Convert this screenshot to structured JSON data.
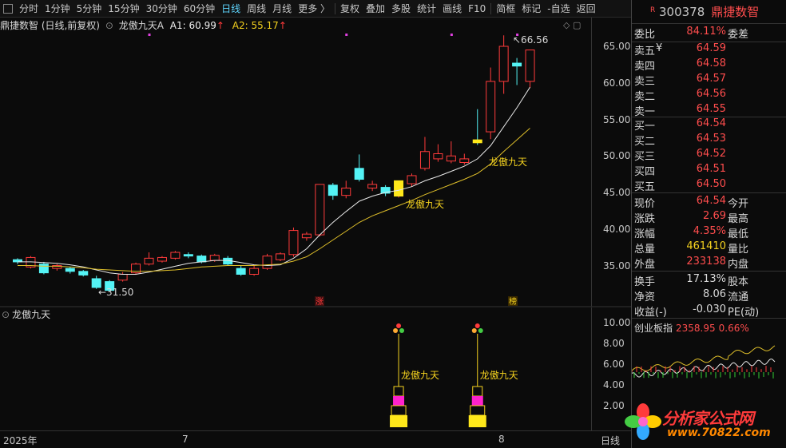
{
  "toolbar": {
    "items": [
      "分时",
      "1分钟",
      "5分钟",
      "15分钟",
      "30分钟",
      "60分钟",
      "日线",
      "周线",
      "月线",
      "更多 〉",
      "复权",
      "叠加",
      "多股",
      "统计",
      "画线",
      "F10",
      "简框",
      "标记",
      "-自选",
      "返回"
    ],
    "active": "日线"
  },
  "chart_header": {
    "stock_label": "鼎捷数智 (日线,前复权)",
    "indicator": "龙傲九天A",
    "a1_label": "A1:",
    "a1_value": "60.99",
    "a2_label": "A2:",
    "a2_value": "55.17",
    "up_arrow": "↑",
    "window_icons": "◇ ▢"
  },
  "price_axis": [
    "65.00",
    "60.00",
    "55.00",
    "50.00",
    "45.00",
    "40.00",
    "35.00"
  ],
  "indicator_panel": {
    "title": "龙傲九天",
    "axis": [
      "10.00",
      "8.00",
      "6.00",
      "4.00",
      "2.00"
    ]
  },
  "dates": {
    "start": "2025年",
    "m7": "7",
    "m8": "8",
    "period": "日线"
  },
  "chart_data": {
    "type": "candlestick",
    "price_range": [
      31.0,
      68.0
    ],
    "candles": [
      {
        "o": 35.8,
        "c": 35.5,
        "h": 36.0,
        "l": 35.2
      },
      {
        "o": 34.8,
        "c": 36.1,
        "h": 36.3,
        "l": 34.6
      },
      {
        "o": 35.2,
        "c": 34.0,
        "h": 35.5,
        "l": 33.8
      },
      {
        "o": 34.6,
        "c": 35.0,
        "h": 35.2,
        "l": 34.3
      },
      {
        "o": 34.6,
        "c": 34.2,
        "h": 34.8,
        "l": 33.9
      },
      {
        "o": 34.2,
        "c": 33.7,
        "h": 34.4,
        "l": 33.5
      },
      {
        "o": 33.2,
        "c": 32.0,
        "h": 33.6,
        "l": 31.8
      },
      {
        "o": 32.8,
        "c": 31.6,
        "h": 33.0,
        "l": 31.5
      },
      {
        "o": 33.0,
        "c": 33.8,
        "h": 34.1,
        "l": 32.8
      },
      {
        "o": 34.0,
        "c": 35.2,
        "h": 35.4,
        "l": 33.8
      },
      {
        "o": 35.2,
        "c": 36.0,
        "h": 36.8,
        "l": 35.0
      },
      {
        "o": 35.6,
        "c": 36.1,
        "h": 36.3,
        "l": 35.4
      },
      {
        "o": 36.0,
        "c": 36.8,
        "h": 37.0,
        "l": 35.8
      },
      {
        "o": 36.5,
        "c": 36.3,
        "h": 36.8,
        "l": 36.0
      },
      {
        "o": 36.3,
        "c": 35.5,
        "h": 36.5,
        "l": 35.3
      },
      {
        "o": 35.7,
        "c": 36.4,
        "h": 36.6,
        "l": 35.5
      },
      {
        "o": 36.0,
        "c": 35.2,
        "h": 36.3,
        "l": 35.0
      },
      {
        "o": 34.6,
        "c": 33.8,
        "h": 35.0,
        "l": 33.6
      },
      {
        "o": 33.8,
        "c": 34.6,
        "h": 35.0,
        "l": 33.6
      },
      {
        "o": 34.6,
        "c": 36.3,
        "h": 36.6,
        "l": 34.4
      },
      {
        "o": 35.8,
        "c": 36.6,
        "h": 36.8,
        "l": 35.6
      },
      {
        "o": 36.5,
        "c": 39.8,
        "h": 40.2,
        "l": 36.2
      },
      {
        "o": 38.8,
        "c": 39.3,
        "h": 39.6,
        "l": 38.4
      },
      {
        "o": 39.2,
        "c": 46.1,
        "h": 46.1,
        "l": 39.0
      },
      {
        "o": 46.0,
        "c": 44.6,
        "h": 46.3,
        "l": 44.0
      },
      {
        "o": 44.6,
        "c": 45.6,
        "h": 46.6,
        "l": 44.2
      },
      {
        "o": 48.3,
        "c": 46.8,
        "h": 50.2,
        "l": 46.5
      },
      {
        "o": 45.6,
        "c": 46.1,
        "h": 46.6,
        "l": 45.2
      },
      {
        "o": 45.7,
        "c": 44.9,
        "h": 46.0,
        "l": 44.5
      },
      {
        "o": 44.5,
        "c": 46.6,
        "h": 46.6,
        "l": 44.3
      },
      {
        "o": 46.2,
        "c": 47.3,
        "h": 47.6,
        "l": 45.8
      },
      {
        "o": 48.3,
        "c": 50.6,
        "h": 52.6,
        "l": 48.0
      },
      {
        "o": 49.6,
        "c": 50.3,
        "h": 51.6,
        "l": 49.2
      },
      {
        "o": 49.3,
        "c": 50.0,
        "h": 52.0,
        "l": 49.0
      },
      {
        "o": 49.1,
        "c": 49.6,
        "h": 50.3,
        "l": 48.8
      },
      {
        "o": 52.2,
        "c": 51.8,
        "h": 56.4,
        "l": 51.5
      },
      {
        "o": 53.3,
        "c": 60.2,
        "h": 62.1,
        "l": 52.3
      },
      {
        "o": 60.2,
        "c": 65.0,
        "h": 66.5,
        "l": 58.5
      },
      {
        "o": 62.7,
        "c": 62.3,
        "h": 63.4,
        "l": 59.7
      },
      {
        "o": 60.2,
        "c": 64.5,
        "h": 64.5,
        "l": 59.3
      }
    ],
    "ma_white": [
      35.5,
      35.5,
      35.4,
      35.3,
      35.1,
      34.8,
      34.4,
      34.0,
      33.8,
      33.8,
      34.1,
      34.5,
      34.9,
      35.3,
      35.5,
      35.7,
      35.7,
      35.4,
      35.1,
      35.0,
      35.1,
      36.0,
      37.3,
      39.2,
      40.9,
      42.4,
      43.8,
      44.5,
      45.0,
      45.3,
      45.8,
      46.6,
      47.2,
      47.9,
      48.6,
      49.6,
      51.4,
      54.0,
      56.6,
      59.4
    ],
    "ma_yellow": [
      35.0,
      35.0,
      34.9,
      34.9,
      34.8,
      34.7,
      34.5,
      34.4,
      34.3,
      34.2,
      34.2,
      34.3,
      34.4,
      34.6,
      34.8,
      34.9,
      35.0,
      35.0,
      35.0,
      35.1,
      35.2,
      35.6,
      36.2,
      37.3,
      38.5,
      39.7,
      40.9,
      41.8,
      42.5,
      43.2,
      43.9,
      44.7,
      45.4,
      46.1,
      46.8,
      47.6,
      48.9,
      50.6,
      52.2,
      53.8
    ],
    "annotations": {
      "low": "←31.50",
      "high": "↖66.56",
      "signal": "龙傲九天",
      "zhang": "涨",
      "bang": "榜"
    },
    "indicator_signals": [
      29,
      35
    ]
  },
  "quote": {
    "r_tag": "R",
    "code": "300378",
    "name": "鼎捷数智",
    "weibi_label": "委比",
    "weibi_value": "84.11%",
    "weicha_label": "委差",
    "asks": [
      {
        "label": "卖五",
        "mark": "¥",
        "price": "64.59"
      },
      {
        "label": "卖四",
        "mark": "",
        "price": "64.58"
      },
      {
        "label": "卖三",
        "mark": "",
        "price": "64.57"
      },
      {
        "label": "卖二",
        "mark": "",
        "price": "64.56"
      },
      {
        "label": "卖一",
        "mark": "",
        "price": "64.55"
      }
    ],
    "bids": [
      {
        "label": "买一",
        "price": "64.54"
      },
      {
        "label": "买二",
        "price": "64.53"
      },
      {
        "label": "买三",
        "price": "64.52"
      },
      {
        "label": "买四",
        "price": "64.51"
      },
      {
        "label": "买五",
        "price": "64.50"
      }
    ],
    "stats": [
      {
        "k": "现价",
        "v": "64.54",
        "k2": "今开",
        "color": "red"
      },
      {
        "k": "涨跌",
        "v": "2.69",
        "k2": "最高",
        "color": "red"
      },
      {
        "k": "涨幅",
        "v": "4.35%",
        "k2": "最低",
        "color": "red"
      },
      {
        "k": "总量",
        "v": "461410",
        "k2": "量比",
        "color": "yellow"
      },
      {
        "k": "外盘",
        "v": "233138",
        "k2": "内盘",
        "color": "red"
      }
    ],
    "stats2": [
      {
        "k": "换手",
        "v": "17.13%",
        "k2": "股本"
      },
      {
        "k": "净资",
        "v": "8.06",
        "k2": "流通"
      },
      {
        "k": "收益(-)",
        "v": "-0.030",
        "k2": "PE(动)"
      }
    ],
    "index": {
      "name": "创业板指",
      "value": "2358.95",
      "pct": "0.66%"
    }
  },
  "watermark": {
    "text": "分析家公式网",
    "url": "www.70822.com"
  }
}
